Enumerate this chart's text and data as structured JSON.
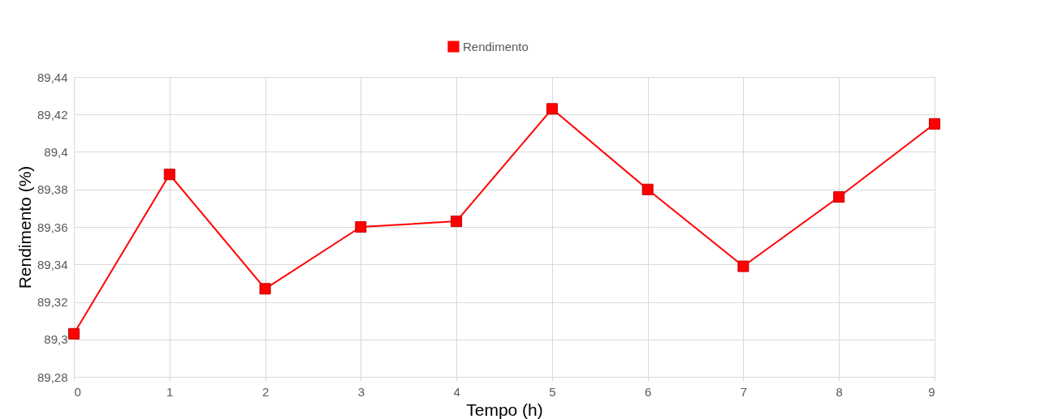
{
  "chart_data": {
    "type": "line",
    "xlabel": "Tempo (h)",
    "ylabel": "Rendimento (%)",
    "x": [
      0,
      1,
      2,
      3,
      4,
      5,
      6,
      7,
      8,
      9
    ],
    "series": [
      {
        "name": "Rendimento",
        "color": "#ff0000",
        "values": [
          89.303,
          89.388,
          89.327,
          89.36,
          89.363,
          89.423,
          89.38,
          89.339,
          89.376,
          89.415
        ]
      }
    ],
    "xlim": [
      0,
      9
    ],
    "xticks": [
      0,
      1,
      2,
      3,
      4,
      5,
      6,
      7,
      8,
      9
    ],
    "ylim": [
      89.28,
      89.44
    ],
    "yticks": [
      {
        "value": 89.28,
        "label": "89,28"
      },
      {
        "value": 89.3,
        "label": "89,3"
      },
      {
        "value": 89.32,
        "label": "89,32"
      },
      {
        "value": 89.34,
        "label": "89,34"
      },
      {
        "value": 89.36,
        "label": "89,36"
      },
      {
        "value": 89.38,
        "label": "89,38"
      },
      {
        "value": 89.4,
        "label": "89,4"
      },
      {
        "value": 89.42,
        "label": "89,42"
      },
      {
        "value": 89.44,
        "label": "89,44"
      }
    ],
    "grid": true,
    "legend": "top",
    "marker": "square",
    "line_style": "solid"
  }
}
